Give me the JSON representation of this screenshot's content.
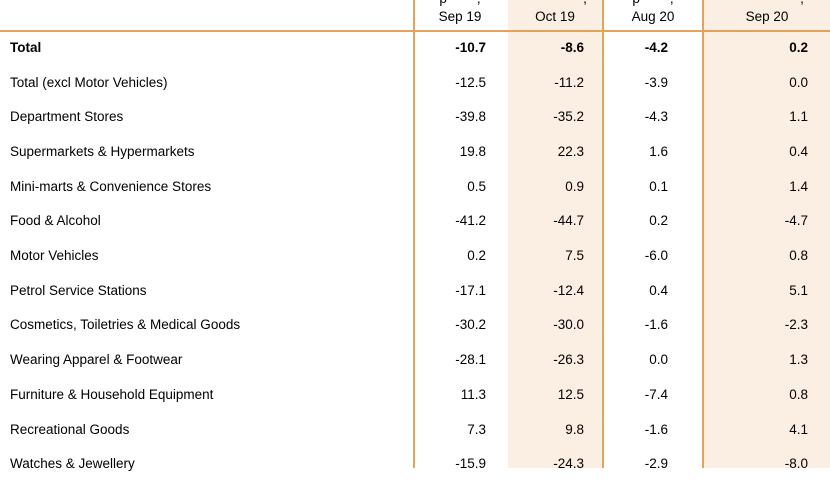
{
  "header": {
    "columns": [
      "Sep 19",
      "Oct 19",
      "Aug 20",
      "Sep 20"
    ]
  },
  "rows": [
    {
      "label": "Total",
      "values": [
        "-10.7",
        "-8.6",
        "-4.2",
        "0.2"
      ],
      "bold": true
    },
    {
      "label": "Total (excl Motor Vehicles)",
      "values": [
        "-12.5",
        "-11.2",
        "-3.9",
        "0.0"
      ]
    },
    {
      "label": "Department Stores",
      "values": [
        "-39.8",
        "-35.2",
        "-4.3",
        "1.1"
      ]
    },
    {
      "label": "Supermarkets & Hypermarkets",
      "values": [
        "19.8",
        "22.3",
        "1.6",
        "0.4"
      ]
    },
    {
      "label": "Mini-marts & Convenience Stores",
      "values": [
        "0.5",
        "0.9",
        "0.1",
        "1.4"
      ]
    },
    {
      "label": "Food & Alcohol",
      "values": [
        "-41.2",
        "-44.7",
        "0.2",
        "-4.7"
      ]
    },
    {
      "label": "Motor Vehicles",
      "values": [
        "0.2",
        "7.5",
        "-6.0",
        "0.8"
      ]
    },
    {
      "label": "Petrol Service Stations",
      "values": [
        "-17.1",
        "-12.4",
        "0.4",
        "5.1"
      ]
    },
    {
      "label": "Cosmetics, Toiletries & Medical Goods",
      "values": [
        "-30.2",
        "-30.0",
        "-1.6",
        "-2.3"
      ]
    },
    {
      "label": "Wearing Apparel & Footwear",
      "values": [
        "-28.1",
        "-26.3",
        "0.0",
        "1.3"
      ]
    },
    {
      "label": "Furniture & Household Equipment",
      "values": [
        "11.3",
        "12.5",
        "-7.4",
        "0.8"
      ]
    },
    {
      "label": "Recreational Goods",
      "values": [
        "7.3",
        "9.8",
        "-1.6",
        "4.1"
      ]
    },
    {
      "label": "Watches & Jewellery",
      "values": [
        "-15.9",
        "-24.3",
        "-2.9",
        "-8.0"
      ]
    }
  ],
  "colors": {
    "border": "#e3a35b",
    "shade": "#fbeee2"
  }
}
